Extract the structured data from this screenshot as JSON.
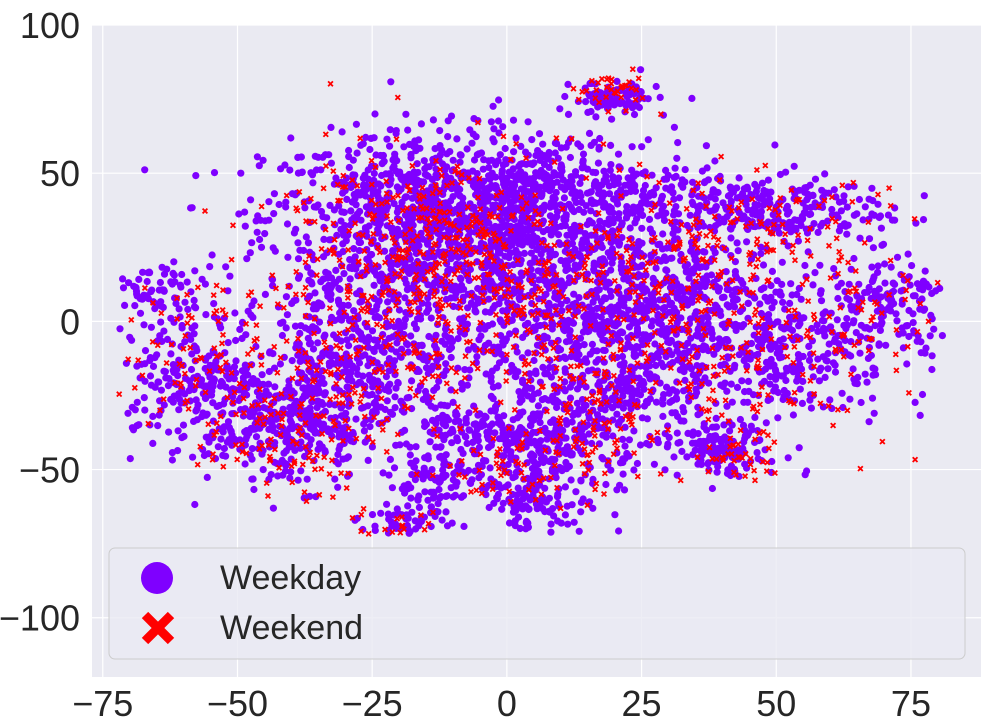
{
  "chart_data": {
    "type": "scatter",
    "title": "",
    "xlabel": "",
    "ylabel": "",
    "xlim": [
      -77,
      88
    ],
    "ylim": [
      -120,
      100
    ],
    "grid": true,
    "background": "#eaeaf2",
    "x_ticks": [
      -75,
      -50,
      -25,
      0,
      25,
      50,
      75
    ],
    "x_tick_labels": [
      "−75",
      "−50",
      "−25",
      "0",
      "25",
      "50",
      "75"
    ],
    "y_ticks": [
      -100,
      -50,
      0,
      50,
      100
    ],
    "y_tick_labels": [
      "−100",
      "−50",
      "0",
      "50",
      "100"
    ],
    "legend": {
      "position": "bottom",
      "entries": [
        {
          "label": "Weekday",
          "marker": "circle",
          "color": "#7f00ff"
        },
        {
          "label": "Weekend",
          "marker": "x",
          "color": "#ff0000"
        }
      ]
    },
    "series": [
      {
        "name": "Weekday",
        "marker": "circle",
        "color": "#7f00ff",
        "clusters": [
          {
            "cx": -15,
            "cy": 35,
            "sx": 15,
            "sy": 14,
            "n": 900
          },
          {
            "cx": 5,
            "cy": 15,
            "sx": 16,
            "sy": 22,
            "n": 900
          },
          {
            "cx": 10,
            "cy": 45,
            "sx": 12,
            "sy": 9,
            "n": 250
          },
          {
            "cx": 45,
            "cy": 38,
            "sx": 13,
            "sy": 6,
            "n": 300
          },
          {
            "cx": 48,
            "cy": -8,
            "sx": 12,
            "sy": 14,
            "n": 450
          },
          {
            "cx": 72,
            "cy": 5,
            "sx": 6,
            "sy": 8,
            "n": 120
          },
          {
            "cx": -58,
            "cy": -18,
            "sx": 8,
            "sy": 12,
            "n": 250
          },
          {
            "cx": -65,
            "cy": 10,
            "sx": 4,
            "sy": 5,
            "n": 60
          },
          {
            "cx": -40,
            "cy": -35,
            "sx": 8,
            "sy": 10,
            "n": 350
          },
          {
            "cx": -25,
            "cy": -10,
            "sx": 10,
            "sy": 14,
            "n": 400
          },
          {
            "cx": -14,
            "cy": -55,
            "sx": 4,
            "sy": 6,
            "n": 90
          },
          {
            "cx": 5,
            "cy": -45,
            "sx": 8,
            "sy": 10,
            "n": 280
          },
          {
            "cx": 20,
            "cy": -20,
            "sx": 10,
            "sy": 15,
            "n": 350
          },
          {
            "cx": 40,
            "cy": -44,
            "sx": 4,
            "sy": 4,
            "n": 110
          },
          {
            "cx": 20,
            "cy": 75,
            "sx": 4,
            "sy": 3,
            "n": 90
          },
          {
            "cx": -8,
            "cy": -38,
            "sx": 4,
            "sy": 4,
            "n": 60
          },
          {
            "cx": 5,
            "cy": -62,
            "sx": 4,
            "sy": 4,
            "n": 60
          },
          {
            "cx": -20,
            "cy": -68,
            "sx": 4,
            "sy": 3,
            "n": 40
          },
          {
            "cx": 30,
            "cy": 10,
            "sx": 10,
            "sy": 10,
            "n": 250
          }
        ]
      },
      {
        "name": "Weekend",
        "marker": "x",
        "color": "#ff0000",
        "clusters": [
          {
            "cx": -18,
            "cy": 30,
            "sx": 14,
            "sy": 14,
            "n": 260
          },
          {
            "cx": 5,
            "cy": 10,
            "sx": 16,
            "sy": 22,
            "n": 220
          },
          {
            "cx": 45,
            "cy": 30,
            "sx": 13,
            "sy": 10,
            "n": 100
          },
          {
            "cx": 48,
            "cy": -15,
            "sx": 12,
            "sy": 14,
            "n": 110
          },
          {
            "cx": 68,
            "cy": 5,
            "sx": 8,
            "sy": 8,
            "n": 40
          },
          {
            "cx": -58,
            "cy": -15,
            "sx": 9,
            "sy": 14,
            "n": 90
          },
          {
            "cx": -40,
            "cy": -38,
            "sx": 8,
            "sy": 10,
            "n": 90
          },
          {
            "cx": -25,
            "cy": -10,
            "sx": 10,
            "sy": 14,
            "n": 110
          },
          {
            "cx": 5,
            "cy": -45,
            "sx": 8,
            "sy": 10,
            "n": 80
          },
          {
            "cx": 20,
            "cy": -20,
            "sx": 10,
            "sy": 15,
            "n": 100
          },
          {
            "cx": 42,
            "cy": -46,
            "sx": 4,
            "sy": 4,
            "n": 30
          },
          {
            "cx": 20,
            "cy": 78,
            "sx": 4,
            "sy": 3,
            "n": 35
          },
          {
            "cx": -20,
            "cy": -68,
            "sx": 4,
            "sy": 3,
            "n": 18
          },
          {
            "cx": 30,
            "cy": 10,
            "sx": 10,
            "sy": 10,
            "n": 70
          }
        ]
      }
    ]
  }
}
